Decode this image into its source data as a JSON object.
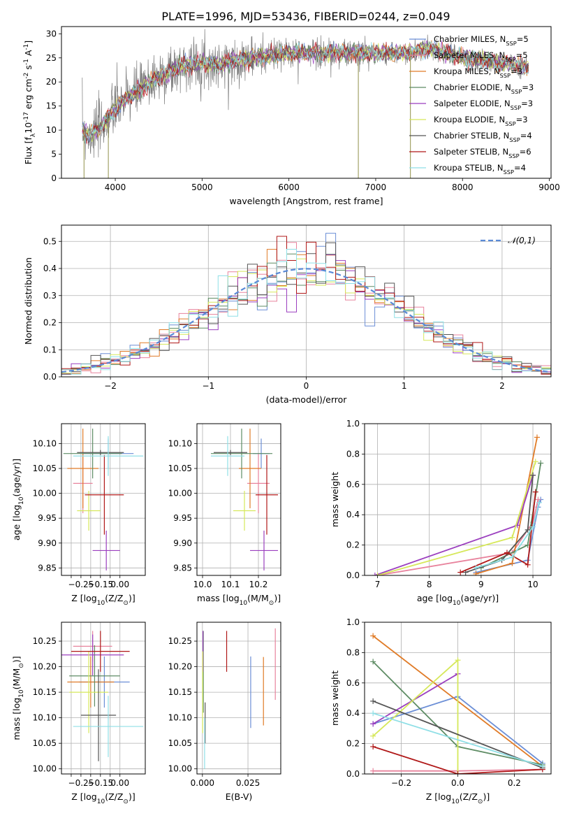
{
  "figure_title": "PLATE=1996, MJD=53436, FIBERID=0244, z=0.049",
  "colors": {
    "c0": "#6b8ed6",
    "c1": "#e8839d",
    "c2": "#e07b27",
    "c3": "#5e8c64",
    "c4": "#9b3fbf",
    "c5": "#d6e85a",
    "c6": "#555555",
    "c7": "#b01818",
    "c8": "#8fdfe6",
    "grid": "#b0b0b0",
    "ref": "#5a8ad6"
  },
  "chart_data": [
    {
      "id": "spectrum",
      "type": "line",
      "xlabel": "wavelength [Angstrom, rest frame]",
      "ylabel": "Flux [f$_\\lambda$10$^{-17}$ erg cm$^{-2}$ s$^{-1}$ A$^{-1}$]",
      "xlim": [
        3380,
        9020
      ],
      "ylim": [
        0,
        31.5
      ],
      "xticks": [
        4000,
        5000,
        6000,
        7000,
        8000,
        9000
      ],
      "yticks": [
        0,
        5,
        10,
        15,
        20,
        25,
        30
      ],
      "legend_position": "upper right",
      "series": [
        {
          "name": "Chabrier MILES, N$_{SSP}$=5",
          "color": "#6b8ed6"
        },
        {
          "name": "Salpeter MILES, N$_{SSP}$=5",
          "color": "#e8839d"
        },
        {
          "name": "Kroupa MILES, N$_{SSP}$=3",
          "color": "#e07b27"
        },
        {
          "name": "Chabrier ELODIE, N$_{SSP}$=3",
          "color": "#5e8c64"
        },
        {
          "name": "Salpeter ELODIE, N$_{SSP}$=3",
          "color": "#9b3fbf"
        },
        {
          "name": "Kroupa ELODIE, N$_{SSP}$=3",
          "color": "#d6e85a"
        },
        {
          "name": "Chabrier STELIB, N$_{SSP}$=4",
          "color": "#555555"
        },
        {
          "name": "Salpeter STELIB, N$_{SSP}$=6",
          "color": "#b01818"
        },
        {
          "name": "Kroupa STELIB, N$_{SSP}$=4",
          "color": "#8fdfe6"
        }
      ],
      "continuum": [
        [
          3620,
          10
        ],
        [
          3700,
          9
        ],
        [
          3800,
          10
        ],
        [
          3900,
          12
        ],
        [
          4000,
          14.5
        ],
        [
          4100,
          16
        ],
        [
          4200,
          17.5
        ],
        [
          4300,
          18.5
        ],
        [
          4400,
          20
        ],
        [
          4500,
          21
        ],
        [
          4600,
          22
        ],
        [
          4800,
          23.5
        ],
        [
          5000,
          24
        ],
        [
          5200,
          23.5
        ],
        [
          5400,
          24.5
        ],
        [
          5600,
          25
        ],
        [
          5800,
          25.5
        ],
        [
          6000,
          26
        ],
        [
          6200,
          26
        ],
        [
          6400,
          26
        ],
        [
          6600,
          26
        ],
        [
          6800,
          26
        ],
        [
          7000,
          26
        ],
        [
          7200,
          26
        ],
        [
          7400,
          26
        ],
        [
          7600,
          27
        ],
        [
          7800,
          26
        ],
        [
          8000,
          25
        ],
        [
          8200,
          24.5
        ],
        [
          8400,
          24
        ],
        [
          8600,
          23.5
        ],
        [
          8750,
          23
        ]
      ],
      "spikes": [
        [
          3640,
          0
        ],
        [
          3920,
          0
        ],
        [
          6800,
          0
        ],
        [
          7400,
          0
        ]
      ]
    },
    {
      "id": "residual_hist",
      "type": "bar",
      "xlabel": "(data-model)/error",
      "ylabel": "Normed distribution",
      "xlim": [
        -2.5,
        2.5
      ],
      "ylim": [
        0,
        0.56
      ],
      "xticks": [
        -2,
        -1,
        0,
        1,
        2
      ],
      "yticks": [
        0,
        0.1,
        0.2,
        0.3,
        0.4,
        0.5
      ],
      "bin_width": 0.1,
      "reference": {
        "name": "$\\mathcal{N}(0,1)$",
        "style": "dashed"
      },
      "legend_position": "upper right"
    },
    {
      "id": "age_vs_Z",
      "type": "scatter",
      "xlabel": "Z [log$_{10}$(Z/Z$_\\odot$)]",
      "ylabel": "age  [log$_{10}$(age/yr)]",
      "xlim": [
        -0.3,
        0.13
      ],
      "ylim": [
        9.835,
        10.14
      ],
      "xticks": [
        -0.25,
        -0.2,
        -0.15,
        -0.1,
        -0.05,
        0.0
      ],
      "xticklabels": [
        "",
        "-0.25",
        "",
        "-0.15",
        "",
        "0.00"
      ],
      "yticks": [
        9.85,
        9.9,
        9.95,
        10.0,
        10.05,
        10.1
      ],
      "points": [
        {
          "s": 0,
          "x": -0.06,
          "xe": 0.13,
          "y": 10.08,
          "ye": 0.03
        },
        {
          "s": 1,
          "x": -0.19,
          "xe": 0.05,
          "y": 10.02,
          "ye": 0.06
        },
        {
          "s": 2,
          "x": -0.19,
          "xe": 0.08,
          "y": 10.05,
          "ye": 0.08
        },
        {
          "s": 3,
          "x": -0.14,
          "xe": 0.15,
          "y": 10.08,
          "ye": 0.05
        },
        {
          "s": 4,
          "x": -0.07,
          "xe": 0.07,
          "y": 9.885,
          "ye": 0.04
        },
        {
          "s": 5,
          "x": -0.16,
          "xe": 0.06,
          "y": 9.965,
          "ye": 0.04
        },
        {
          "s": 6,
          "x": -0.1,
          "xe": 0.12,
          "y": 10.082,
          "ye": 0.005
        },
        {
          "s": 7,
          "x": -0.08,
          "xe": 0.1,
          "y": 9.997,
          "ye": 0.08
        },
        {
          "s": 8,
          "x": -0.06,
          "xe": 0.18,
          "y": 10.075,
          "ye": 0.04
        }
      ]
    },
    {
      "id": "age_vs_mass",
      "type": "scatter",
      "xlabel": "mass [log$_{10}$(M/M$_\\odot$)]",
      "ylabel": "",
      "xlim": [
        9.98,
        10.28
      ],
      "ylim": [
        9.835,
        10.14
      ],
      "xticks": [
        10.0,
        10.1,
        10.2
      ],
      "xticklabels": [
        "10.0",
        "10.1",
        "10.2"
      ],
      "yticks": [
        9.85,
        9.9,
        9.95,
        10.0,
        10.05,
        10.1
      ],
      "points": [
        {
          "s": 0,
          "x": 10.21,
          "xe": 0.03,
          "y": 10.08,
          "ye": 0.03
        },
        {
          "s": 1,
          "x": 10.2,
          "xe": 0.04,
          "y": 10.02,
          "ye": 0.06
        },
        {
          "s": 2,
          "x": 10.17,
          "xe": 0.04,
          "y": 10.05,
          "ye": 0.08
        },
        {
          "s": 3,
          "x": 10.14,
          "xe": 0.11,
          "y": 10.08,
          "ye": 0.05
        },
        {
          "s": 4,
          "x": 10.22,
          "xe": 0.05,
          "y": 9.885,
          "ye": 0.04
        },
        {
          "s": 5,
          "x": 10.15,
          "xe": 0.04,
          "y": 9.965,
          "ye": 0.04
        },
        {
          "s": 6,
          "x": 10.1,
          "xe": 0.06,
          "y": 10.082,
          "ye": 0.005
        },
        {
          "s": 7,
          "x": 10.23,
          "xe": 0.04,
          "y": 9.997,
          "ye": 0.08
        },
        {
          "s": 8,
          "x": 10.09,
          "xe": 0.06,
          "y": 10.075,
          "ye": 0.04
        }
      ]
    },
    {
      "id": "mass_vs_Z",
      "type": "scatter",
      "xlabel": "Z [log$_{10}$(Z/Z$_\\odot$)]",
      "ylabel": "mass [log$_{10}$(M/M$_\\odot$)]",
      "xlim": [
        -0.3,
        0.13
      ],
      "ylim": [
        9.99,
        10.287
      ],
      "xticks": [
        -0.25,
        -0.2,
        -0.15,
        -0.1,
        -0.05,
        0.0
      ],
      "xticklabels": [
        "",
        "-0.25",
        "",
        "-0.15",
        "",
        "0.00"
      ],
      "yticks": [
        10.0,
        10.05,
        10.1,
        10.15,
        10.2,
        10.25
      ],
      "points": [
        {
          "s": 0,
          "x": -0.08,
          "xe": 0.13,
          "y": 10.17,
          "ye": 0.05
        },
        {
          "s": 1,
          "x": -0.14,
          "xe": 0.1,
          "y": 10.24,
          "ye": 0.03
        },
        {
          "s": 2,
          "x": -0.15,
          "xe": 0.12,
          "y": 10.17,
          "ye": 0.05
        },
        {
          "s": 3,
          "x": -0.13,
          "xe": 0.13,
          "y": 10.182,
          "ye": 0.06
        },
        {
          "s": 4,
          "x": -0.14,
          "xe": 0.16,
          "y": 10.223,
          "ye": 0.04
        },
        {
          "s": 5,
          "x": -0.16,
          "xe": 0.1,
          "y": 10.15,
          "ye": 0.08
        },
        {
          "s": 6,
          "x": -0.11,
          "xe": 0.09,
          "y": 10.105,
          "ye": 0.09
        },
        {
          "s": 7,
          "x": -0.1,
          "xe": 0.15,
          "y": 10.23,
          "ye": 0.04
        },
        {
          "s": 8,
          "x": -0.06,
          "xe": 0.18,
          "y": 10.083,
          "ye": 0.06
        }
      ]
    },
    {
      "id": "mass_vs_EBV",
      "type": "scatter",
      "xlabel": "E(B-V)",
      "ylabel": "",
      "xlim": [
        -0.003,
        0.043
      ],
      "ylim": [
        9.99,
        10.287
      ],
      "xticks": [
        0.0,
        0.025
      ],
      "xticklabels": [
        "0.000",
        "0.025"
      ],
      "yticks": [
        10.0,
        10.05,
        10.1,
        10.15,
        10.2,
        10.25
      ],
      "points": [
        {
          "s": 0,
          "x": 0.0265,
          "xe": 0,
          "y": 10.15,
          "ye": 0.07
        },
        {
          "s": 1,
          "x": 0.04,
          "xe": 0,
          "y": 10.205,
          "ye": 0.07
        },
        {
          "s": 2,
          "x": 0.0335,
          "xe": 0,
          "y": 10.152,
          "ye": 0.067
        },
        {
          "s": 3,
          "x": 0.0005,
          "xe": 0,
          "y": 10.19,
          "ye": 0.08
        },
        {
          "s": 4,
          "x": 0.0003,
          "xe": 0,
          "y": 10.23,
          "ye": 0.04
        },
        {
          "s": 5,
          "x": 0.0001,
          "xe": 0,
          "y": 10.15,
          "ye": 0.08
        },
        {
          "s": 6,
          "x": 0.0015,
          "xe": 0,
          "y": 10.09,
          "ye": 0.04
        },
        {
          "s": 7,
          "x": 0.0133,
          "xe": 0,
          "y": 10.23,
          "ye": 0.04
        },
        {
          "s": 8,
          "x": 0.0012,
          "xe": 0,
          "y": 10.05,
          "ye": 0.05
        }
      ]
    },
    {
      "id": "weight_vs_age",
      "type": "line",
      "xlabel": "age  [log$_{10}$(age/yr)]",
      "ylabel": "mass weight",
      "xlim": [
        6.75,
        10.35
      ],
      "ylim": [
        0,
        1.0
      ],
      "xticks": [
        7,
        8,
        9,
        10
      ],
      "yticks": [
        0,
        0.2,
        0.4,
        0.6,
        0.8,
        1.0
      ],
      "series": [
        {
          "s": 0,
          "points": [
            [
              8.9,
              0.02
            ],
            [
              9.9,
              0.1
            ],
            [
              10.1,
              0.45
            ],
            [
              10.15,
              0.5
            ]
          ]
        },
        {
          "s": 1,
          "points": [
            [
              7.0,
              0.0
            ],
            [
              9.6,
              0.15
            ],
            [
              10.0,
              0.35
            ],
            [
              10.1,
              0.5
            ]
          ]
        },
        {
          "s": 2,
          "points": [
            [
              8.9,
              0.01
            ],
            [
              9.6,
              0.08
            ],
            [
              10.08,
              0.91
            ]
          ]
        },
        {
          "s": 3,
          "points": [
            [
              9.0,
              0.05
            ],
            [
              9.9,
              0.2
            ],
            [
              10.15,
              0.74
            ]
          ]
        },
        {
          "s": 4,
          "points": [
            [
              6.95,
              0.0
            ],
            [
              9.7,
              0.33
            ],
            [
              10.0,
              0.66
            ]
          ]
        },
        {
          "s": 5,
          "points": [
            [
              7.0,
              0.0
            ],
            [
              9.6,
              0.25
            ],
            [
              10.05,
              0.75
            ]
          ]
        },
        {
          "s": 6,
          "points": [
            [
              8.7,
              0.02
            ],
            [
              9.4,
              0.1
            ],
            [
              9.9,
              0.3
            ],
            [
              10.0,
              0.66
            ]
          ]
        },
        {
          "s": 7,
          "points": [
            [
              8.6,
              0.02
            ],
            [
              9.5,
              0.15
            ],
            [
              9.9,
              0.07
            ],
            [
              10.05,
              0.55
            ]
          ]
        },
        {
          "s": 8,
          "points": [
            [
              8.9,
              0.05
            ],
            [
              9.6,
              0.12
            ],
            [
              10.0,
              0.32
            ],
            [
              10.12,
              0.48
            ]
          ]
        }
      ]
    },
    {
      "id": "weight_vs_Z",
      "type": "line",
      "xlabel": "Z [log$_{10}$(Z/Z$_\\odot$)]",
      "ylabel": "mass weight",
      "xlim": [
        -0.33,
        0.33
      ],
      "ylim": [
        0,
        1.0
      ],
      "xticks": [
        -0.2,
        0.0,
        0.2
      ],
      "xticklabels": [
        "-0.2",
        "0.0",
        "0.2"
      ],
      "yticks": [
        0,
        0.2,
        0.4,
        0.6,
        0.8,
        1.0
      ],
      "series": [
        {
          "s": 0,
          "points": [
            [
              -0.3,
              0.33
            ],
            [
              0.0,
              0.51
            ],
            [
              0.3,
              0.07
            ]
          ]
        },
        {
          "s": 1,
          "points": [
            [
              -0.3,
              0.02
            ],
            [
              0.0,
              0.02
            ],
            [
              0.3,
              0.03
            ]
          ]
        },
        {
          "s": 2,
          "points": [
            [
              -0.3,
              0.91
            ],
            [
              0.3,
              0.05
            ]
          ]
        },
        {
          "s": 3,
          "points": [
            [
              -0.3,
              0.74
            ],
            [
              0.0,
              0.18
            ],
            [
              0.3,
              0.06
            ]
          ]
        },
        {
          "s": 4,
          "points": [
            [
              -0.3,
              0.33
            ],
            [
              0.0,
              0.66
            ]
          ]
        },
        {
          "s": 5,
          "points": [
            [
              -0.3,
              0.25
            ],
            [
              0.0,
              0.75
            ],
            [
              0.0,
              0.0
            ]
          ]
        },
        {
          "s": 6,
          "points": [
            [
              -0.3,
              0.48
            ],
            [
              0.3,
              0.04
            ]
          ]
        },
        {
          "s": 7,
          "points": [
            [
              -0.3,
              0.18
            ],
            [
              0.0,
              0.0
            ],
            [
              0.3,
              0.03
            ]
          ]
        },
        {
          "s": 8,
          "points": [
            [
              -0.3,
              0.4
            ],
            [
              0.3,
              0.05
            ]
          ]
        }
      ]
    }
  ]
}
